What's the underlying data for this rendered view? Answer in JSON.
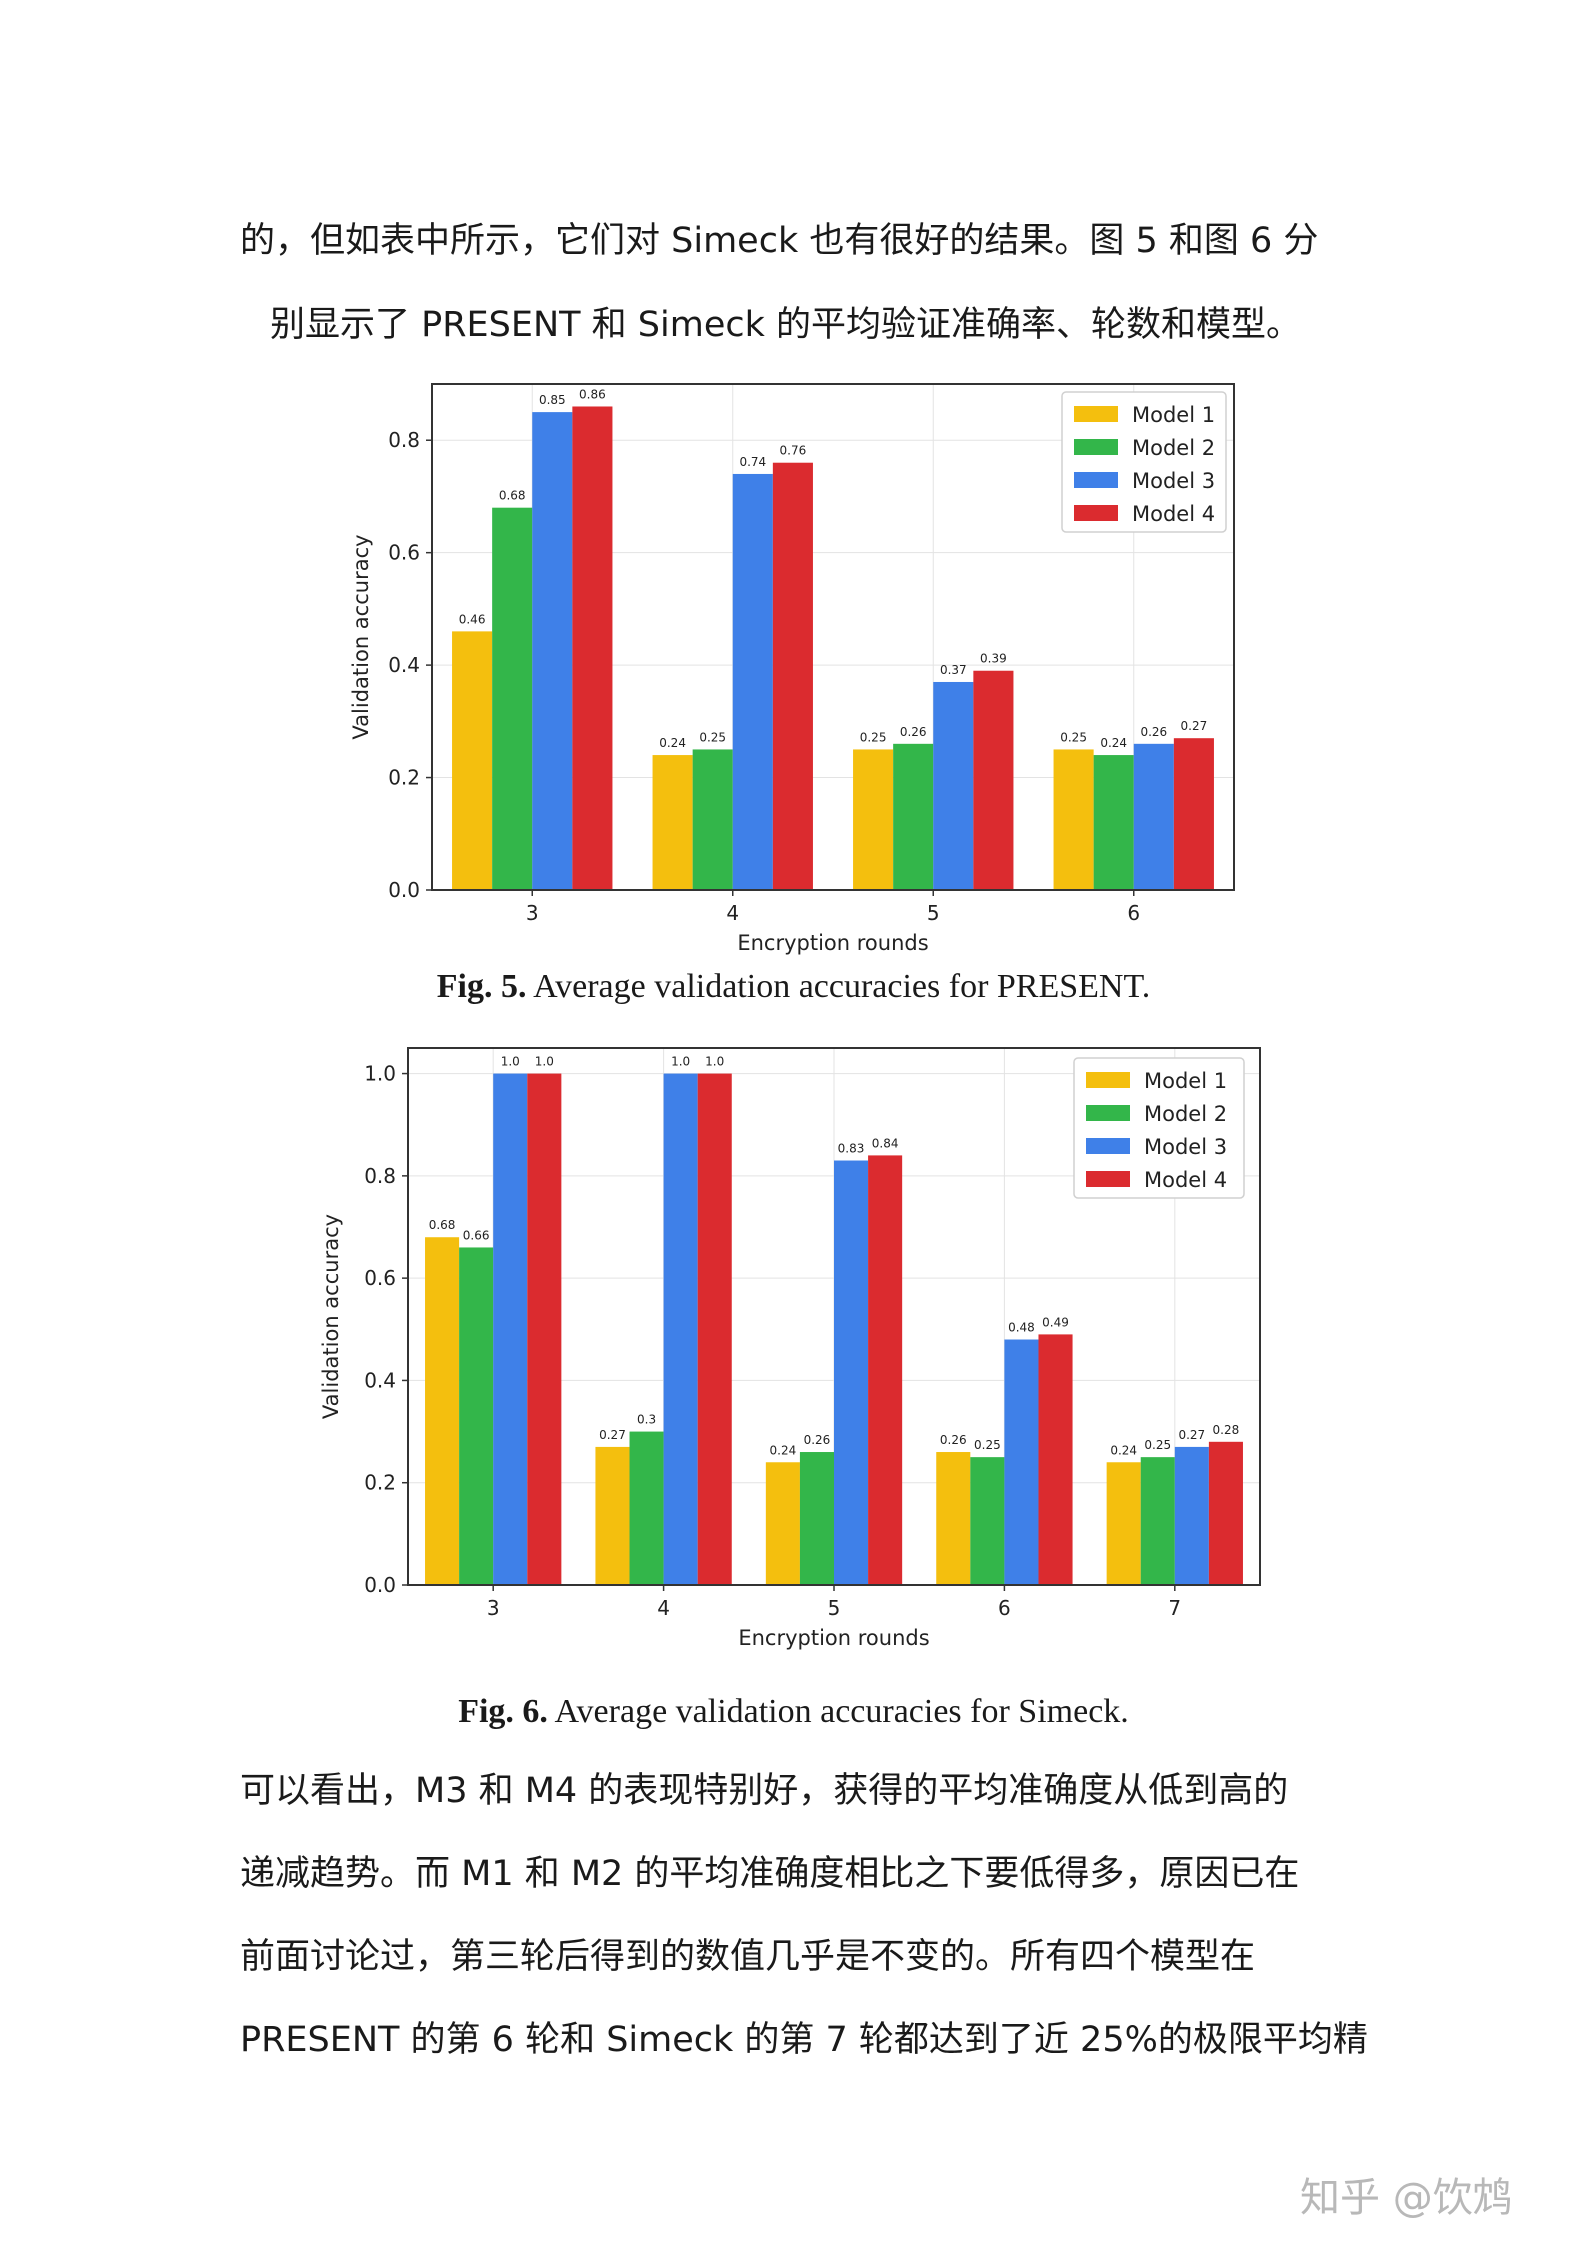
{
  "text": {
    "top_line1": "的，但如表中所示，它们对 Simeck 也有很好的结果。图 5 和图 6 分",
    "top_line2": "别显示了 PRESENT 和 Simeck 的平均验证准确率、轮数和模型。",
    "bottom_lines": [
      "可以看出，M3 和 M4 的表现特别好，获得的平均准确度从低到高的",
      "递减趋势。而 M1 和 M2 的平均准确度相比之下要低得多，原因已在",
      "前面讨论过，第三轮后得到的数值几乎是不变的。所有四个模型在",
      "PRESENT 的第 6 轮和 Simeck 的第 7 轮都达到了近 25%的极限平均精"
    ],
    "watermark": "知乎 @饮鸩"
  },
  "captions": {
    "fig5_label": "Fig. 5.",
    "fig5_text": " Average validation accuracies for PRESENT.",
    "fig6_label": "Fig. 6.",
    "fig6_text": " Average validation accuracies for Simeck."
  },
  "colors": {
    "model1": "#F4BF0E",
    "model2": "#33B64A",
    "model3": "#3F80E8",
    "model4": "#DB2B2F"
  },
  "chart_data": [
    {
      "type": "bar",
      "title": "",
      "xlabel": "Encryption rounds",
      "ylabel": "Validation accuracy",
      "categories": [
        "3",
        "4",
        "5",
        "6"
      ],
      "ylim": [
        0,
        0.9
      ],
      "yticks": [
        "0.0",
        "0.2",
        "0.4",
        "0.6",
        "0.8"
      ],
      "grid": true,
      "legend": "top-right",
      "series": [
        {
          "name": "Model 1",
          "values": [
            0.46,
            0.24,
            0.25,
            0.25
          ],
          "labels": [
            "0.46",
            "0.24",
            "0.25",
            "0.25"
          ]
        },
        {
          "name": "Model 2",
          "values": [
            0.68,
            0.25,
            0.26,
            0.24
          ],
          "labels": [
            "0.68",
            "0.25",
            "0.26",
            "0.24"
          ]
        },
        {
          "name": "Model 3",
          "values": [
            0.85,
            0.74,
            0.37,
            0.26
          ],
          "labels": [
            "0.85",
            "0.74",
            "0.37",
            "0.26"
          ]
        },
        {
          "name": "Model 4",
          "values": [
            0.86,
            0.76,
            0.39,
            0.27
          ],
          "labels": [
            "0.86",
            "0.76",
            "0.39",
            "0.27"
          ]
        }
      ]
    },
    {
      "type": "bar",
      "title": "",
      "xlabel": "Encryption rounds",
      "ylabel": "Validation accuracy",
      "categories": [
        "3",
        "4",
        "5",
        "6",
        "7"
      ],
      "ylim": [
        0,
        1.05
      ],
      "yticks": [
        "0.0",
        "0.2",
        "0.4",
        "0.6",
        "0.8",
        "1.0"
      ],
      "grid": true,
      "legend": "top-right",
      "series": [
        {
          "name": "Model 1",
          "values": [
            0.68,
            0.27,
            0.24,
            0.26,
            0.24
          ],
          "labels": [
            "0.68",
            "0.27",
            "0.24",
            "0.26",
            "0.24"
          ]
        },
        {
          "name": "Model 2",
          "values": [
            0.66,
            0.3,
            0.26,
            0.25,
            0.25
          ],
          "labels": [
            "0.66",
            "0.3",
            "0.26",
            "0.25",
            "0.25"
          ]
        },
        {
          "name": "Model 3",
          "values": [
            1.0,
            1.0,
            0.83,
            0.48,
            0.27
          ],
          "labels": [
            "1.0",
            "1.0",
            "0.83",
            "0.48",
            "0.27"
          ]
        },
        {
          "name": "Model 4",
          "values": [
            1.0,
            1.0,
            0.84,
            0.49,
            0.28
          ],
          "labels": [
            "1.0",
            "1.0",
            "0.84",
            "0.49",
            "0.28"
          ]
        }
      ]
    }
  ]
}
